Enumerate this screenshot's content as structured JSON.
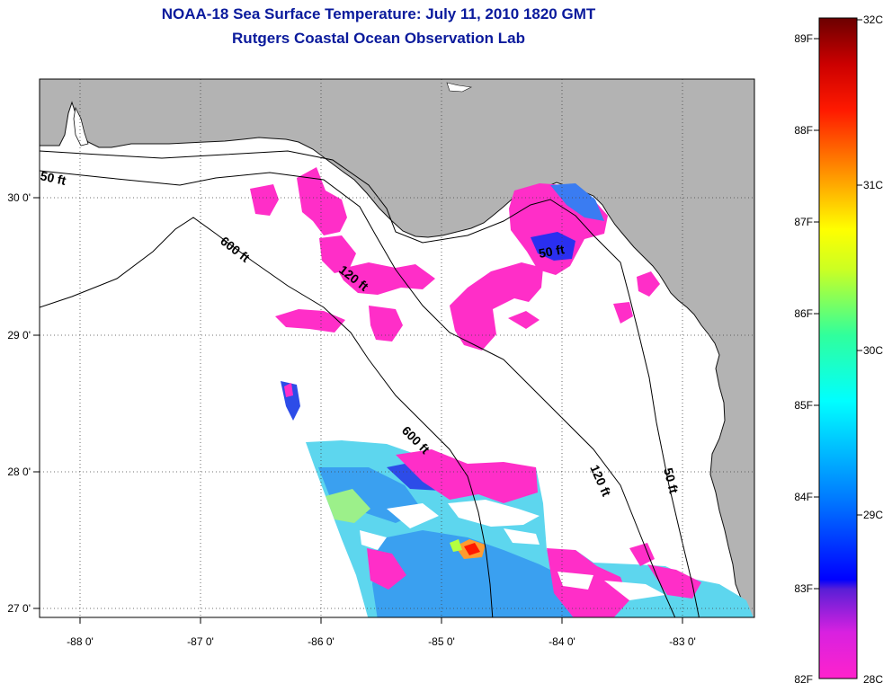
{
  "header": {
    "title": "NOAA-18 Sea Surface Temperature:  July 11, 2010 1820 GMT",
    "subtitle": "Rutgers Coastal Ocean Observation Lab"
  },
  "map": {
    "region": "Northeastern Gulf of Mexico / Florida Big Bend",
    "lon_range": [
      -88.35,
      -82.45
    ],
    "lat_range": [
      26.94,
      30.88
    ],
    "lon_ticks": [
      "-88 0'",
      "-87 0'",
      "-86 0'",
      "-85 0'",
      "-84 0'",
      "-83 0'"
    ],
    "lat_ticks": [
      "30 0'",
      "29 0'",
      "28 0'",
      "27 0'"
    ],
    "land_color": "#b3b3b3",
    "water_color": "#ffffff",
    "gridlines": true,
    "contour_labels": [
      {
        "text": "50 ft",
        "lon": -88.0,
        "lat": 30.12
      },
      {
        "text": "600 ft",
        "lon": -86.65,
        "lat": 29.6
      },
      {
        "text": "120 ft",
        "lon": -85.8,
        "lat": 29.38
      },
      {
        "text": "50 ft",
        "lon": -83.95,
        "lat": 29.6
      },
      {
        "text": "600 ft",
        "lon": -85.25,
        "lat": 28.22
      },
      {
        "text": "120 ft",
        "lon": -83.75,
        "lat": 27.98
      },
      {
        "text": "50 ft",
        "lon": -82.95,
        "lat": 27.95
      }
    ]
  },
  "colorbar": {
    "fahrenheit_labels": [
      "89F",
      "88F",
      "87F",
      "86F",
      "85F",
      "84F",
      "83F",
      "82F"
    ],
    "celsius_labels": [
      "32C",
      "31C",
      "30C",
      "29C",
      "28C"
    ],
    "min_c": 28,
    "max_c": 32,
    "colors": [
      "#ff22cc",
      "#5a1fd6",
      "#0000ff",
      "#0090ff",
      "#00ffff",
      "#40ff90",
      "#ffff00",
      "#ff9900",
      "#ff1a00",
      "#a00000",
      "#6b0000"
    ]
  }
}
